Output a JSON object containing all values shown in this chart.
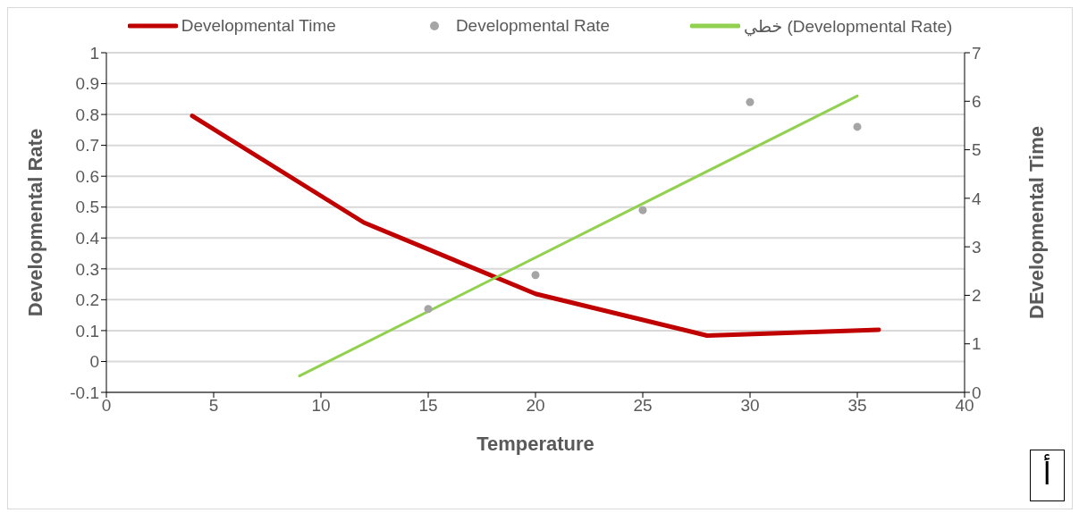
{
  "chart_data": {
    "type": "line",
    "xlabel": "Temperature",
    "ylabel": "Developmental Rate",
    "y2label": "DEvelopmental Time",
    "xlim": [
      0,
      40
    ],
    "xticks": [
      0,
      5,
      10,
      15,
      20,
      25,
      30,
      35,
      40
    ],
    "ylim": [
      -0.1,
      1
    ],
    "yticks": [
      -0.1,
      0,
      0.1,
      0.2,
      0.3,
      0.4,
      0.5,
      0.6,
      0.7,
      0.8,
      0.9,
      1
    ],
    "y2lim": [
      0,
      7
    ],
    "y2ticks": [
      0,
      1,
      2,
      3,
      4,
      5,
      6,
      7
    ],
    "grid": "y",
    "legend": "top",
    "series": [
      {
        "name": "Developmental Time",
        "axis": "y2",
        "color": "#c00000",
        "marker": "none",
        "x": [
          4,
          12,
          20,
          28,
          36
        ],
        "values": [
          5.7,
          3.5,
          2.03,
          1.17,
          1.29
        ]
      },
      {
        "name": "Developmental Rate",
        "type": "scatter",
        "axis": "y",
        "color": "#a5a5a5",
        "marker": "circle",
        "x": [
          15,
          20,
          25,
          30,
          35
        ],
        "values": [
          0.17,
          0.28,
          0.49,
          0.84,
          0.76
        ]
      },
      {
        "name": "خطي (Developmental Rate)",
        "axis": "y",
        "color": "#92d050",
        "marker": "none",
        "x": [
          9,
          35
        ],
        "values": [
          -0.047,
          0.86
        ]
      }
    ],
    "annotations": [
      "أ"
    ]
  }
}
